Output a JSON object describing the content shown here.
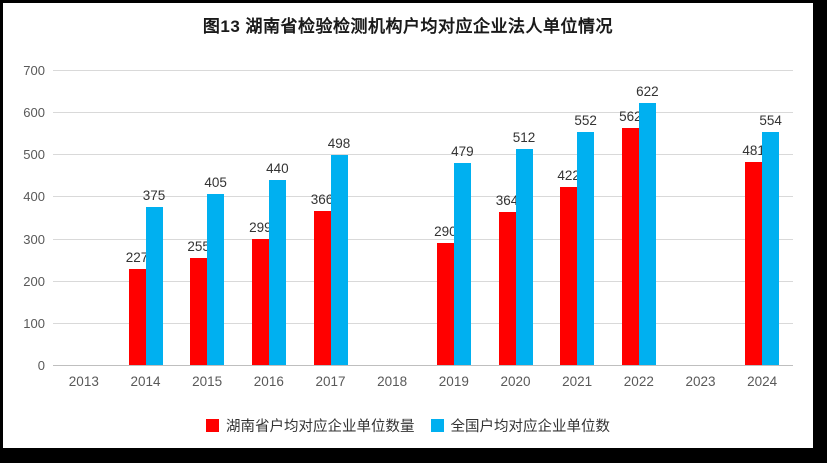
{
  "chart_data": {
    "type": "bar",
    "title": "图13 湖南省检验检测机构户均对应企业法人单位情况",
    "categories": [
      "2013",
      "2014",
      "2015",
      "2016",
      "2017",
      "2018",
      "2019",
      "2020",
      "2021",
      "2022",
      "2023",
      "2024"
    ],
    "series": [
      {
        "name": "湖南省户均对应企业单位数量",
        "color": "#ff0000",
        "values": [
          null,
          227,
          255,
          299,
          366,
          null,
          290,
          364,
          422,
          562,
          null,
          481
        ]
      },
      {
        "name": "全国户均对应企业单位数",
        "color": "#00b0f0",
        "values": [
          null,
          375,
          405,
          440,
          498,
          null,
          479,
          512,
          552,
          622,
          null,
          554
        ]
      }
    ],
    "ylim": [
      0,
      700
    ],
    "ytick_interval": 100,
    "grid": true,
    "legend_position": "bottom",
    "gridline_color": "#d9d9d9",
    "axis_line_color": "#bfbfbf"
  }
}
